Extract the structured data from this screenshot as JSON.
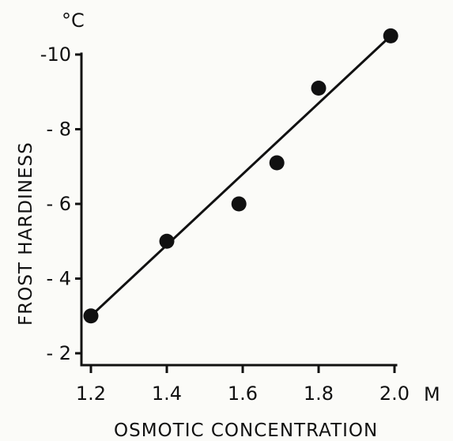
{
  "chart_data": {
    "type": "scatter",
    "xlabel": "OSMOTIC CONCENTRATION",
    "ylabel": "FROST HARDINESS",
    "y_unit": "°C",
    "x_unit": "M",
    "xlim": [
      1.2,
      2.0
    ],
    "ylim": [
      -2,
      -10
    ],
    "x_ticks": [
      1.2,
      1.4,
      1.6,
      1.8,
      2.0
    ],
    "x_tick_labels": [
      "1.2",
      "1.4",
      "1.6",
      "1.8",
      "2.0"
    ],
    "y_ticks": [
      -2,
      -4,
      -6,
      -8,
      -10
    ],
    "y_tick_labels": [
      "- 2",
      "- 4",
      "- 6",
      "- 8",
      "-10"
    ],
    "grid": false,
    "legend": "none",
    "series": [
      {
        "points": [
          {
            "x": 1.2,
            "y": -3.0
          },
          {
            "x": 1.4,
            "y": -5.0
          },
          {
            "x": 1.59,
            "y": -6.0
          },
          {
            "x": 1.69,
            "y": -7.1
          },
          {
            "x": 1.8,
            "y": -9.1
          },
          {
            "x": 1.99,
            "y": -10.5
          }
        ],
        "fit_line": {
          "x": [
            1.2,
            1.99
          ],
          "y": [
            -3.0,
            -10.5
          ]
        }
      }
    ]
  }
}
